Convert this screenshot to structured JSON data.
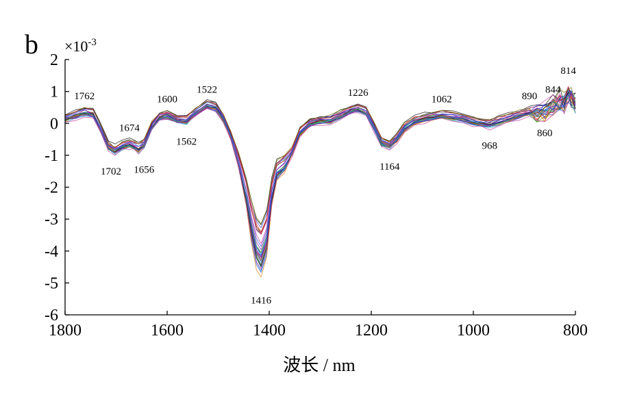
{
  "panel_label": "b",
  "chart_data": {
    "type": "line",
    "title": "",
    "xlabel": "波长 / nm",
    "ylabel": "",
    "y_scale_exponent_label": {
      "base": "×10",
      "exponent": "-3"
    },
    "xlim": [
      1800,
      800
    ],
    "x_axis_reversed": true,
    "ylim": [
      -6,
      2
    ],
    "x_ticks": [
      1800,
      1600,
      1400,
      1200,
      1000,
      800
    ],
    "x_tick_labels": [
      "1800",
      "1600",
      "1400",
      "1200",
      "1000",
      "800"
    ],
    "y_ticks": [
      2,
      1,
      0,
      -1,
      -2,
      -3,
      -4,
      -5,
      -6
    ],
    "y_tick_labels": [
      "2",
      "1",
      "0",
      "-1",
      "-2",
      "-3",
      "-4",
      "-5",
      "-6"
    ],
    "grid": false,
    "legend": "none",
    "series_count": 30,
    "series_colors": [
      "#1f3fd0",
      "#d42020",
      "#1a9e3a",
      "#7a1fa0",
      "#101010",
      "#e07a10",
      "#2aa6c8",
      "#c83aa0",
      "#7a7a10",
      "#3a3ae0"
    ],
    "x": [
      1800,
      1780,
      1762,
      1745,
      1730,
      1715,
      1702,
      1688,
      1674,
      1665,
      1656,
      1645,
      1630,
      1615,
      1600,
      1580,
      1562,
      1545,
      1522,
      1505,
      1490,
      1475,
      1460,
      1445,
      1435,
      1425,
      1416,
      1405,
      1395,
      1385,
      1370,
      1355,
      1340,
      1320,
      1300,
      1280,
      1260,
      1240,
      1226,
      1210,
      1195,
      1180,
      1164,
      1150,
      1135,
      1115,
      1095,
      1080,
      1062,
      1040,
      1020,
      1000,
      985,
      968,
      950,
      930,
      910,
      890,
      875,
      860,
      844,
      830,
      822,
      814,
      808,
      800
    ],
    "mean_y": [
      0.15,
      0.25,
      0.35,
      0.3,
      -0.2,
      -0.75,
      -0.85,
      -0.72,
      -0.65,
      -0.72,
      -0.8,
      -0.65,
      -0.1,
      0.2,
      0.25,
      0.12,
      0.08,
      0.32,
      0.55,
      0.5,
      0.15,
      -0.4,
      -1.2,
      -2.2,
      -3.1,
      -3.8,
      -4.0,
      -3.5,
      -2.2,
      -1.5,
      -1.3,
      -0.9,
      -0.3,
      0.0,
      0.08,
      0.1,
      0.25,
      0.4,
      0.45,
      0.35,
      -0.1,
      -0.6,
      -0.7,
      -0.5,
      -0.15,
      0.05,
      0.15,
      0.2,
      0.25,
      0.2,
      0.15,
      0.05,
      0.0,
      -0.05,
      0.05,
      0.15,
      0.25,
      0.35,
      0.3,
      0.35,
      0.55,
      0.7,
      0.65,
      0.9,
      0.8,
      0.6
    ],
    "y_range_at_peaks": {
      "1416": [
        -5.1,
        -3.1
      ],
      "1164": [
        -0.95,
        -0.45
      ],
      "1522": [
        0.45,
        0.65
      ]
    },
    "peak_annotations": [
      {
        "label": "1762",
        "x": 1762,
        "position": "above"
      },
      {
        "label": "1674",
        "x": 1674,
        "position": "above"
      },
      {
        "label": "1702",
        "x": 1702,
        "position": "below"
      },
      {
        "label": "1656",
        "x": 1656,
        "position": "below"
      },
      {
        "label": "1600",
        "x": 1600,
        "position": "above"
      },
      {
        "label": "1562",
        "x": 1562,
        "position": "below"
      },
      {
        "label": "1522",
        "x": 1522,
        "position": "above"
      },
      {
        "label": "1416",
        "x": 1416,
        "position": "below"
      },
      {
        "label": "1226",
        "x": 1226,
        "position": "above"
      },
      {
        "label": "1164",
        "x": 1164,
        "position": "below"
      },
      {
        "label": "1062",
        "x": 1062,
        "position": "above"
      },
      {
        "label": "968",
        "x": 968,
        "position": "below"
      },
      {
        "label": "890",
        "x": 890,
        "position": "above"
      },
      {
        "label": "860",
        "x": 860,
        "position": "below"
      },
      {
        "label": "844",
        "x": 844,
        "position": "above"
      },
      {
        "label": "814",
        "x": 814,
        "position": "above"
      }
    ]
  }
}
